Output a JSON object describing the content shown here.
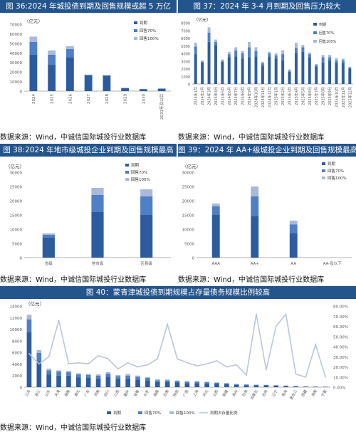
{
  "colors": {
    "header_bg": "#24548c",
    "due": "#2d5c9e",
    "p70": "#4f7fc5",
    "p100": "#aab9d8",
    "ratio_line": "#b8c5e0",
    "axis_text": "#555555"
  },
  "source_text": "数据来源：Wind，中诚信国际城投行业数据库",
  "chart_data": [
    {
      "type": "bar",
      "title": "图 36:2024 年城投债到期及回售规模或超 5 万亿",
      "ylabel": "（亿元）",
      "ylim": [
        0,
        70000
      ],
      "yticks": [
        "0",
        "10000",
        "20000",
        "30000",
        "40000",
        "50000",
        "60000",
        "70000"
      ],
      "legend": [
        "到期",
        "回售70%",
        "回售100%"
      ],
      "categories": [
        "2024",
        "2025",
        "2026",
        "2027",
        "2028",
        "2029",
        "2030",
        "2031年及以后"
      ],
      "series": [
        {
          "name": "到期",
          "values": [
            38000,
            27500,
            35500,
            16500,
            16000,
            3000,
            2000,
            2500
          ]
        },
        {
          "name": "回售70%",
          "values": [
            13500,
            10500,
            8500,
            500,
            500,
            300,
            200,
            200
          ]
        },
        {
          "name": "回售100%",
          "values": [
            5500,
            4500,
            3000,
            300,
            200,
            100,
            100,
            100
          ]
        }
      ]
    },
    {
      "type": "bar",
      "title": "图 37：2024 年 3-4 月到期及回售压力较大",
      "ylabel": "（亿元）",
      "ylim": [
        0,
        8000
      ],
      "yticks": [
        "0",
        "1000",
        "2000",
        "3000",
        "4000",
        "5000",
        "6000",
        "7000",
        "8000"
      ],
      "legend": [
        "到期",
        "回售70%",
        "回售100%"
      ],
      "categories": [
        "2024年1月",
        "2024年2月",
        "2024年3月",
        "2024年4月",
        "2024年5月",
        "2024年6月",
        "2024年7月",
        "2024年8月",
        "2024年9月",
        "2024年10月",
        "2024年11月",
        "2024年12月",
        "2025年1月",
        "2025年2月",
        "2025年3月",
        "2025年4月",
        "2025年5月",
        "2025年6月",
        "2025年7月",
        "2025年8月",
        "2025年9月",
        "2025年10月",
        "2025年11月",
        "2025年12月"
      ],
      "series": [
        {
          "name": "到期",
          "values": [
            3900,
            2800,
            5500,
            5100,
            2900,
            3500,
            3600,
            3300,
            3500,
            3600,
            2400,
            3600,
            3300,
            3100,
            1600,
            4000,
            4200,
            3500,
            2300,
            2800,
            3100,
            2800,
            2700,
            2000
          ]
        },
        {
          "name": "回售70%",
          "values": [
            1000,
            150,
            1200,
            400,
            150,
            400,
            800,
            700,
            1300,
            700,
            300,
            400,
            450,
            800,
            150,
            700,
            600,
            400,
            200,
            700,
            400,
            300,
            400,
            150
          ]
        },
        {
          "name": "回售100%",
          "values": [
            500,
            100,
            700,
            300,
            150,
            300,
            400,
            300,
            700,
            500,
            200,
            200,
            250,
            500,
            150,
            700,
            300,
            200,
            100,
            300,
            300,
            300,
            200,
            100
          ]
        }
      ]
    },
    {
      "type": "bar",
      "title": "图 38:2024 年地市级城投企业到期及回售规模最高",
      "ylabel": "（亿元）",
      "ylim": [
        0,
        30000
      ],
      "yticks": [
        "0",
        "5000",
        "10000",
        "15000",
        "20000",
        "25000",
        "30000"
      ],
      "legend": [
        "到期",
        "回售70%",
        "回售100%"
      ],
      "categories": [
        "省级",
        "地市级",
        "区县级"
      ],
      "series": [
        {
          "name": "到期",
          "values": [
            7000,
            16000,
            15000
          ]
        },
        {
          "name": "回售70%",
          "values": [
            1000,
            6000,
            6500
          ]
        },
        {
          "name": "回售100%",
          "values": [
            500,
            2500,
            2500
          ]
        }
      ]
    },
    {
      "type": "bar",
      "title": "图 39：2024 年 AA+级城投企业到期及回售规模最高",
      "ylabel": "（亿元）",
      "ylim": [
        0,
        30000
      ],
      "yticks": [
        "0",
        "5000",
        "10000",
        "15000",
        "20000",
        "25000",
        "30000"
      ],
      "legend": [
        "到期",
        "回售70%",
        "回售100%"
      ],
      "categories": [
        "AAA",
        "AA+",
        "AA",
        "AA-及以下"
      ],
      "series": [
        {
          "name": "到期",
          "values": [
            15000,
            14500,
            8500,
            0
          ]
        },
        {
          "name": "回售70%",
          "values": [
            3000,
            7000,
            3200,
            0
          ]
        },
        {
          "name": "回售100%",
          "values": [
            1000,
            3500,
            1300,
            0
          ]
        }
      ]
    },
    {
      "type": "bar",
      "title": "图 40：蒙青津城投债到期规模占存量债务规模比例较高",
      "ylabel": "（亿元）",
      "ylim": [
        0,
        14000
      ],
      "y2lim": [
        0,
        80
      ],
      "yticks": [
        "0",
        "2000",
        "4000",
        "6000",
        "8000",
        "10000",
        "12000",
        "14000"
      ],
      "y2ticks": [
        "0.00%",
        "10.00%",
        "20.00%",
        "30.00%",
        "40.00%",
        "50.00%",
        "60.00%",
        "70.00%",
        "80.00%"
      ],
      "legend": [
        "到期",
        "回售70%",
        "回售100%",
        "到期占存量比例"
      ],
      "categories": [
        "江苏",
        "浙江",
        "山东",
        "天津",
        "湖南",
        "湖北",
        "广东",
        "河南",
        "四川",
        "江西",
        "重庆",
        "安徽",
        "北京",
        "福建",
        "云南",
        "陕西",
        "广西",
        "上海",
        "河北",
        "山西",
        "新疆",
        "贵州",
        "甘肃",
        "内蒙古",
        "吉林",
        "辽宁",
        "青海",
        "黑龙江",
        "西藏",
        "海南",
        "宁夏"
      ],
      "series": [
        {
          "name": "到期",
          "values": [
            9500,
            4500,
            2200,
            2000,
            2000,
            1700,
            1600,
            1500,
            1800,
            1400,
            1500,
            1300,
            1200,
            900,
            900,
            800,
            700,
            700,
            650,
            600,
            500,
            400,
            350,
            300,
            300,
            250,
            200,
            150,
            100,
            80,
            60
          ]
        },
        {
          "name": "回售70%",
          "values": [
            2200,
            1400,
            700,
            700,
            600,
            500,
            500,
            500,
            550,
            500,
            500,
            500,
            400,
            300,
            300,
            250,
            250,
            250,
            200,
            150,
            150,
            120,
            100,
            100,
            80,
            70,
            60,
            50,
            30,
            30,
            20
          ]
        },
        {
          "name": "回售100%",
          "values": [
            800,
            500,
            300,
            200,
            200,
            200,
            200,
            200,
            250,
            200,
            250,
            200,
            150,
            150,
            100,
            100,
            100,
            100,
            100,
            80,
            80,
            60,
            50,
            50,
            40,
            30,
            30,
            20,
            20,
            10,
            10
          ]
        },
        {
          "name": "到期占存量比例",
          "values": [
            33,
            23,
            30,
            66,
            23,
            24,
            23,
            31,
            28,
            18,
            24,
            20,
            22,
            28,
            62,
            28,
            24,
            21,
            23,
            26,
            20,
            22,
            12,
            72,
            17,
            60,
            72,
            13,
            10,
            42,
            10
          ]
        }
      ]
    }
  ]
}
